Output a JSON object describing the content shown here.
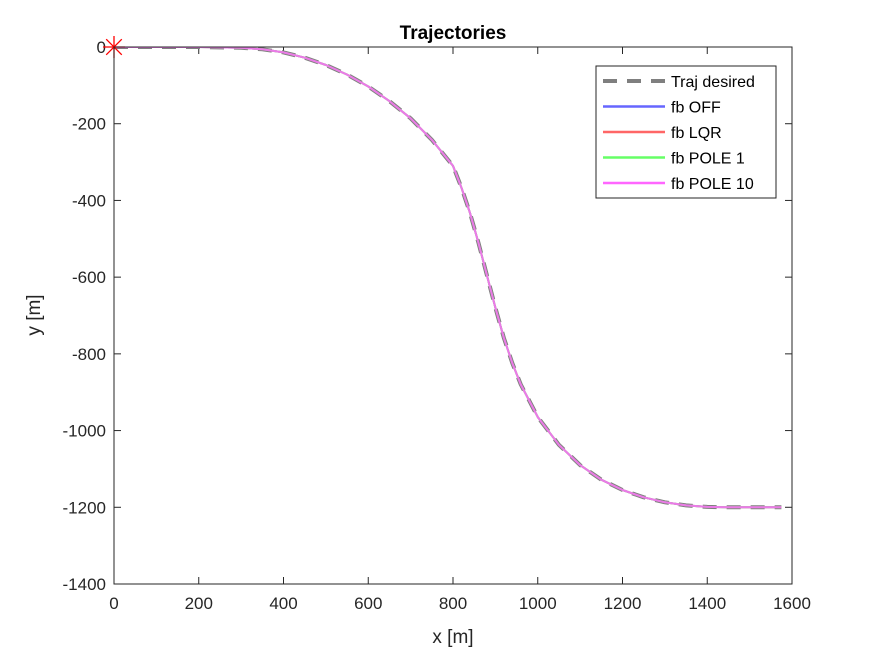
{
  "chart_data": {
    "type": "line",
    "title": "Trajectories",
    "xlabel": "x [m]",
    "ylabel": "y [m]",
    "xlim": [
      0,
      1600
    ],
    "ylim": [
      -1400,
      0
    ],
    "xticks": [
      "0",
      "200",
      "400",
      "600",
      "800",
      "1000",
      "1200",
      "1400",
      "1600"
    ],
    "yticks": [
      "0",
      "-200",
      "-400",
      "-600",
      "-800",
      "-1000",
      "-1200",
      "-1400"
    ],
    "grid": false,
    "legend_position": "top-right",
    "start_marker": {
      "x": 0,
      "y": 0,
      "color": "#ff0000",
      "symbol": "asterisk"
    },
    "series": [
      {
        "name": "Traj desired",
        "color": "#7f7f7f",
        "style": "dashed",
        "x": [
          0,
          100,
          200,
          300,
          350,
          400,
          450,
          500,
          550,
          600,
          650,
          700,
          750,
          800,
          820,
          840,
          860,
          880,
          900,
          920,
          940,
          960,
          1000,
          1050,
          1100,
          1150,
          1200,
          1250,
          1300,
          1350,
          1400,
          1450,
          1500,
          1550,
          1575
        ],
        "y": [
          0,
          0,
          0,
          -2,
          -6,
          -14,
          -28,
          -47,
          -72,
          -103,
          -141,
          -186,
          -242,
          -310,
          -367,
          -432,
          -510,
          -595,
          -680,
          -758,
          -824,
          -880,
          -965,
          -1037,
          -1090,
          -1128,
          -1155,
          -1174,
          -1187,
          -1195,
          -1199,
          -1200,
          -1200,
          -1200,
          -1200
        ]
      },
      {
        "name": "fb OFF",
        "color": "#6666ff",
        "style": "solid",
        "x": [
          0,
          100,
          200,
          300,
          350,
          400,
          450,
          500,
          550,
          600,
          650,
          700,
          750,
          800,
          820,
          840,
          860,
          880,
          900,
          920,
          940,
          960,
          1000,
          1050,
          1100,
          1150,
          1200,
          1250,
          1300,
          1350,
          1400,
          1450,
          1500,
          1550,
          1575
        ],
        "y": [
          0,
          0,
          0,
          -2,
          -6,
          -14,
          -28,
          -47,
          -72,
          -103,
          -141,
          -186,
          -242,
          -310,
          -367,
          -432,
          -510,
          -595,
          -680,
          -758,
          -824,
          -880,
          -965,
          -1037,
          -1090,
          -1128,
          -1155,
          -1174,
          -1187,
          -1195,
          -1199,
          -1200,
          -1200,
          -1200,
          -1200
        ]
      },
      {
        "name": "fb LQR",
        "color": "#ff6666",
        "style": "solid",
        "x": [
          0,
          100,
          200,
          300,
          350,
          400,
          450,
          500,
          550,
          600,
          650,
          700,
          750,
          800,
          820,
          840,
          860,
          880,
          900,
          920,
          940,
          960,
          1000,
          1050,
          1100,
          1150,
          1200,
          1250,
          1300,
          1350,
          1400,
          1450,
          1500,
          1550,
          1575
        ],
        "y": [
          0,
          0,
          0,
          -2,
          -6,
          -14,
          -28,
          -47,
          -72,
          -103,
          -141,
          -186,
          -242,
          -310,
          -367,
          -432,
          -510,
          -595,
          -680,
          -758,
          -824,
          -880,
          -965,
          -1037,
          -1090,
          -1128,
          -1155,
          -1174,
          -1187,
          -1195,
          -1199,
          -1200,
          -1200,
          -1200,
          -1200
        ]
      },
      {
        "name": "fb POLE 1",
        "color": "#66ff66",
        "style": "solid",
        "x": [
          0,
          100,
          200,
          300,
          350,
          400,
          450,
          500,
          550,
          600,
          650,
          700,
          750,
          800,
          820,
          840,
          860,
          880,
          900,
          920,
          940,
          960,
          1000,
          1050,
          1100,
          1150,
          1200,
          1250,
          1300,
          1350,
          1400,
          1450,
          1500,
          1550,
          1575
        ],
        "y": [
          0,
          0,
          0,
          -2,
          -6,
          -14,
          -28,
          -47,
          -72,
          -103,
          -141,
          -186,
          -242,
          -310,
          -367,
          -432,
          -510,
          -595,
          -680,
          -758,
          -824,
          -880,
          -965,
          -1037,
          -1090,
          -1128,
          -1155,
          -1174,
          -1187,
          -1195,
          -1199,
          -1200,
          -1200,
          -1200,
          -1200
        ]
      },
      {
        "name": "fb POLE 10",
        "color": "#ff66ff",
        "style": "solid",
        "x": [
          0,
          100,
          200,
          300,
          350,
          400,
          450,
          500,
          550,
          600,
          650,
          700,
          750,
          800,
          820,
          840,
          860,
          880,
          900,
          920,
          940,
          960,
          1000,
          1050,
          1100,
          1150,
          1200,
          1250,
          1300,
          1350,
          1400,
          1450,
          1500,
          1550,
          1575
        ],
        "y": [
          0,
          0,
          0,
          -2,
          -6,
          -14,
          -28,
          -47,
          -72,
          -103,
          -141,
          -186,
          -242,
          -310,
          -367,
          -432,
          -510,
          -595,
          -680,
          -758,
          -824,
          -880,
          -965,
          -1037,
          -1090,
          -1128,
          -1155,
          -1174,
          -1187,
          -1195,
          -1199,
          -1200,
          -1200,
          -1200,
          -1200
        ]
      }
    ]
  }
}
